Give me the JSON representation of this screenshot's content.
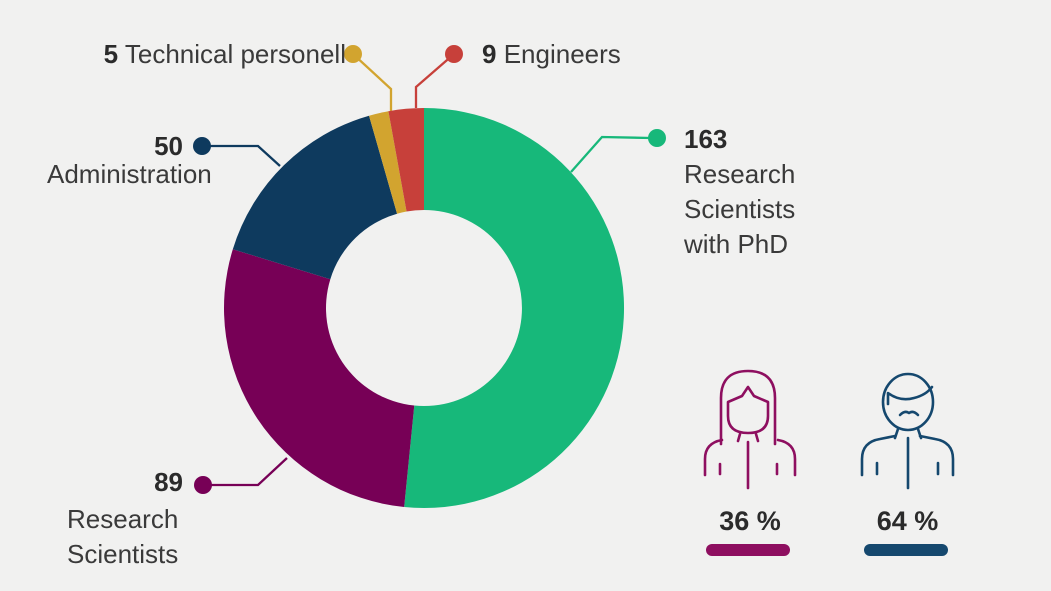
{
  "colors": {
    "background": "#f1f1f0",
    "text": "#3a3a3a",
    "number": "#2b2b2b"
  },
  "chart_data": {
    "type": "pie",
    "variant": "donut",
    "direction": "clockwise",
    "start_angle_deg": 0,
    "inner_radius_ratio": 0.49,
    "segments": [
      {
        "id": "phd",
        "label": "Research Scientists with PhD",
        "value": 163,
        "color": "#17b87a"
      },
      {
        "id": "research-scientists",
        "label": "Research Scientists",
        "value": 89,
        "color": "#770056"
      },
      {
        "id": "administration",
        "label": "Administration",
        "value": 50,
        "color": "#0e3a5e"
      },
      {
        "id": "technical",
        "label": "Technical personell",
        "value": 5,
        "color": "#d2a42f"
      },
      {
        "id": "engineers",
        "label": "Engineers",
        "value": 9,
        "color": "#c7403a"
      }
    ]
  },
  "callouts": {
    "phd": {
      "number": "163",
      "line1": "Research",
      "line2": "Scientists",
      "line3": "with PhD"
    },
    "research_scientists": {
      "number": "89",
      "line1": "Research",
      "line2": "Scientists"
    },
    "administration": {
      "number": "50",
      "label": "Administration"
    },
    "technical": {
      "number": "5",
      "label": "Technical personell"
    },
    "engineers": {
      "number": "9",
      "label": "Engineers"
    }
  },
  "gender": {
    "female": {
      "percent": "36 %",
      "color": "#8e0f60",
      "icon": "woman-outline-icon"
    },
    "male": {
      "percent": "64 %",
      "color": "#15486e",
      "icon": "man-outline-icon"
    }
  }
}
